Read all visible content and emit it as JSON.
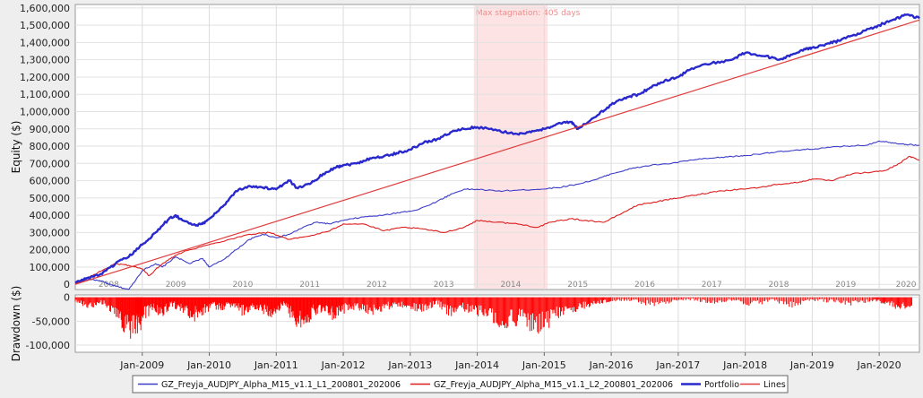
{
  "chart_data": [
    {
      "type": "line",
      "ylabel": "Equity ($)",
      "ylim": [
        -30000,
        1620000
      ],
      "grid": true,
      "yticks": [
        0,
        100000,
        200000,
        300000,
        400000,
        500000,
        600000,
        700000,
        800000,
        900000,
        1000000,
        1100000,
        1200000,
        1300000,
        1400000,
        1500000,
        1600000
      ],
      "ytick_labels": [
        "0",
        "100,000",
        "200,000",
        "300,000",
        "400,000",
        "500,000",
        "600,000",
        "700,000",
        "800,000",
        "900,000",
        "1,000,000",
        "1,100,000",
        "1,200,000",
        "1,300,000",
        "1,400,000",
        "1,500,000",
        "1,600,000"
      ],
      "year_labels": [
        "2008",
        "2009",
        "2010",
        "2011",
        "2012",
        "2013",
        "2014",
        "2015",
        "2016",
        "2017",
        "2018",
        "2019",
        "2020"
      ],
      "year_values": [
        2008.5,
        2009.5,
        2010.5,
        2011.5,
        2012.5,
        2013.5,
        2014.5,
        2015.5,
        2016.5,
        2017.5,
        2018.5,
        2019.5,
        2020.4
      ],
      "xlim": [
        2008.0,
        2020.6
      ],
      "stagnation": {
        "label": "Max stagnation: 405 days",
        "x_start": 2013.95,
        "x_end": 2015.05
      },
      "series": [
        {
          "name": "GZ_Freyja_AUDJPY_Alpha_M15_v1.1_L1_200801_202006",
          "color": "#3c3cc8",
          "width": 1.1,
          "x": [
            2008.0,
            2008.2,
            2008.4,
            2008.5,
            2008.6,
            2008.8,
            2009.0,
            2009.2,
            2009.3,
            2009.5,
            2009.7,
            2009.9,
            2010.0,
            2010.2,
            2010.4,
            2010.6,
            2010.8,
            2011.0,
            2011.2,
            2011.4,
            2011.6,
            2011.8,
            2012.0,
            2012.3,
            2012.6,
            2012.9,
            2013.1,
            2013.4,
            2013.6,
            2013.8,
            2014.0,
            2014.3,
            2014.6,
            2014.9,
            2015.2,
            2015.5,
            2015.8,
            2016.0,
            2016.3,
            2016.6,
            2016.9,
            2017.2,
            2017.5,
            2017.8,
            2018.0,
            2018.3,
            2018.6,
            2018.9,
            2019.2,
            2019.5,
            2019.8,
            2020.0,
            2020.2,
            2020.4,
            2020.6
          ],
          "y": [
            5000,
            30000,
            20000,
            0,
            -10000,
            -30000,
            80000,
            120000,
            100000,
            160000,
            120000,
            150000,
            100000,
            140000,
            200000,
            260000,
            290000,
            270000,
            290000,
            330000,
            360000,
            350000,
            370000,
            390000,
            400000,
            420000,
            430000,
            480000,
            520000,
            550000,
            550000,
            540000,
            545000,
            550000,
            560000,
            580000,
            610000,
            640000,
            670000,
            690000,
            700000,
            720000,
            730000,
            740000,
            745000,
            760000,
            770000,
            780000,
            790000,
            800000,
            805000,
            830000,
            820000,
            810000,
            805000
          ]
        },
        {
          "name": "GZ_Freyja_AUDJPY_Alpha_M15_v1.1_L2_200801_202006",
          "color": "#dc1e1e",
          "width": 1.1,
          "x": [
            2008.0,
            2008.2,
            2008.4,
            2008.6,
            2008.8,
            2009.0,
            2009.1,
            2009.3,
            2009.5,
            2009.7,
            2010.0,
            2010.3,
            2010.6,
            2010.9,
            2011.2,
            2011.5,
            2011.8,
            2012.0,
            2012.3,
            2012.6,
            2012.9,
            2013.2,
            2013.5,
            2013.8,
            2014.0,
            2014.3,
            2014.6,
            2014.9,
            2015.1,
            2015.4,
            2015.6,
            2015.9,
            2016.1,
            2016.4,
            2016.7,
            2017.0,
            2017.3,
            2017.6,
            2017.9,
            2018.2,
            2018.5,
            2018.8,
            2019.0,
            2019.3,
            2019.6,
            2019.9,
            2020.1,
            2020.3,
            2020.45,
            2020.6
          ],
          "y": [
            0,
            40000,
            80000,
            120000,
            110000,
            90000,
            50000,
            120000,
            170000,
            200000,
            230000,
            260000,
            290000,
            300000,
            260000,
            280000,
            310000,
            350000,
            350000,
            310000,
            330000,
            320000,
            300000,
            330000,
            370000,
            360000,
            350000,
            330000,
            360000,
            380000,
            370000,
            360000,
            400000,
            460000,
            480000,
            500000,
            520000,
            540000,
            550000,
            560000,
            580000,
            590000,
            610000,
            600000,
            640000,
            650000,
            660000,
            700000,
            740000,
            720000
          ]
        },
        {
          "name": "Portfolio",
          "color": "#2828cc",
          "width": 2.4,
          "x": [
            2008.0,
            2008.2,
            2008.4,
            2008.6,
            2008.8,
            2009.0,
            2009.2,
            2009.4,
            2009.5,
            2009.6,
            2009.8,
            2009.9,
            2010.0,
            2010.2,
            2010.4,
            2010.6,
            2010.8,
            2011.0,
            2011.2,
            2011.3,
            2011.5,
            2011.7,
            2011.9,
            2012.0,
            2012.2,
            2012.4,
            2012.6,
            2012.8,
            2013.0,
            2013.2,
            2013.4,
            2013.6,
            2013.8,
            2014.0,
            2014.3,
            2014.6,
            2014.8,
            2015.0,
            2015.2,
            2015.4,
            2015.5,
            2015.8,
            2016.0,
            2016.2,
            2016.4,
            2016.6,
            2016.8,
            2017.0,
            2017.2,
            2017.5,
            2017.8,
            2018.0,
            2018.3,
            2018.5,
            2018.7,
            2018.9,
            2019.0,
            2019.2,
            2019.4,
            2019.6,
            2019.8,
            2020.0,
            2020.2,
            2020.4,
            2020.6
          ],
          "y": [
            10000,
            40000,
            60000,
            120000,
            160000,
            230000,
            300000,
            380000,
            400000,
            370000,
            340000,
            350000,
            380000,
            450000,
            540000,
            570000,
            560000,
            550000,
            600000,
            560000,
            580000,
            640000,
            680000,
            690000,
            700000,
            730000,
            740000,
            760000,
            780000,
            820000,
            840000,
            880000,
            900000,
            910000,
            890000,
            870000,
            880000,
            900000,
            930000,
            940000,
            900000,
            980000,
            1040000,
            1080000,
            1100000,
            1140000,
            1180000,
            1200000,
            1250000,
            1280000,
            1300000,
            1340000,
            1320000,
            1300000,
            1330000,
            1360000,
            1370000,
            1390000,
            1410000,
            1440000,
            1470000,
            1500000,
            1530000,
            1560000,
            1540000
          ]
        },
        {
          "name": "Lines",
          "color": "#e03c3c",
          "width": 1.2,
          "x": [
            2008.0,
            2020.6
          ],
          "y": [
            0,
            1530000
          ]
        }
      ]
    },
    {
      "type": "bar",
      "ylabel": "Drawdown ($)",
      "ylim": [
        -115000,
        5000
      ],
      "yticks": [
        0,
        -50000,
        -100000
      ],
      "ytick_labels": [
        "0",
        "-50,000",
        "-100,000"
      ],
      "color": "#ff0000",
      "x": [
        2008.0,
        2008.2,
        2008.4,
        2008.6,
        2008.75,
        2008.9,
        2009.0,
        2009.15,
        2009.3,
        2009.45,
        2009.6,
        2009.75,
        2009.9,
        2010.05,
        2010.2,
        2010.35,
        2010.5,
        2010.65,
        2010.8,
        2010.95,
        2011.1,
        2011.25,
        2011.4,
        2011.55,
        2011.7,
        2011.85,
        2012.0,
        2012.2,
        2012.4,
        2012.6,
        2012.8,
        2013.0,
        2013.2,
        2013.4,
        2013.6,
        2013.8,
        2014.0,
        2014.2,
        2014.4,
        2014.6,
        2014.8,
        2015.0,
        2015.2,
        2015.4,
        2015.6,
        2015.8,
        2016.0,
        2016.3,
        2016.6,
        2016.9,
        2017.2,
        2017.5,
        2017.8,
        2018.1,
        2018.4,
        2018.7,
        2019.0,
        2019.3,
        2019.6,
        2019.9,
        2020.1,
        2020.3,
        2020.5
      ],
      "y": [
        -10000,
        -25000,
        -15000,
        -40000,
        -80000,
        -105000,
        -60000,
        -30000,
        -45000,
        -20000,
        -35000,
        -55000,
        -40000,
        -25000,
        -30000,
        -20000,
        -40000,
        -25000,
        -35000,
        -45000,
        -20000,
        -55000,
        -80000,
        -40000,
        -30000,
        -50000,
        -35000,
        -25000,
        -40000,
        -30000,
        -20000,
        -25000,
        -35000,
        -15000,
        -45000,
        -30000,
        -40000,
        -55000,
        -70000,
        -60000,
        -80000,
        -75000,
        -50000,
        -35000,
        -25000,
        -15000,
        -10000,
        -8000,
        -20000,
        -12000,
        -6000,
        -15000,
        -8000,
        -20000,
        -10000,
        -22000,
        -8000,
        -12000,
        -18000,
        -10000,
        -15000,
        -30000,
        -20000
      ]
    }
  ],
  "x_axis": {
    "tick_labels": [
      "Jan-2009",
      "Jan-2010",
      "Jan-2011",
      "Jan-2012",
      "Jan-2013",
      "Jan-2014",
      "Jan-2015",
      "Jan-2016",
      "Jan-2017",
      "Jan-2018",
      "Jan-2019",
      "Jan-2020"
    ],
    "tick_values": [
      2009.0,
      2010.0,
      2011.0,
      2012.0,
      2013.0,
      2014.0,
      2015.0,
      2016.0,
      2017.0,
      2018.0,
      2019.0,
      2020.0
    ]
  },
  "legend": {
    "placement": "bottom",
    "items": [
      {
        "label": "GZ_Freyja_AUDJPY_Alpha_M15_v1.1_L1_200801_202006",
        "color": "#3c3cc8"
      },
      {
        "label": "GZ_Freyja_AUDJPY_Alpha_M15_v1.1_L2_200801_202006",
        "color": "#dc1e1e"
      },
      {
        "label": "Portfolio",
        "color": "#2828cc"
      },
      {
        "label": "Lines",
        "color": "#e03c3c"
      }
    ]
  }
}
